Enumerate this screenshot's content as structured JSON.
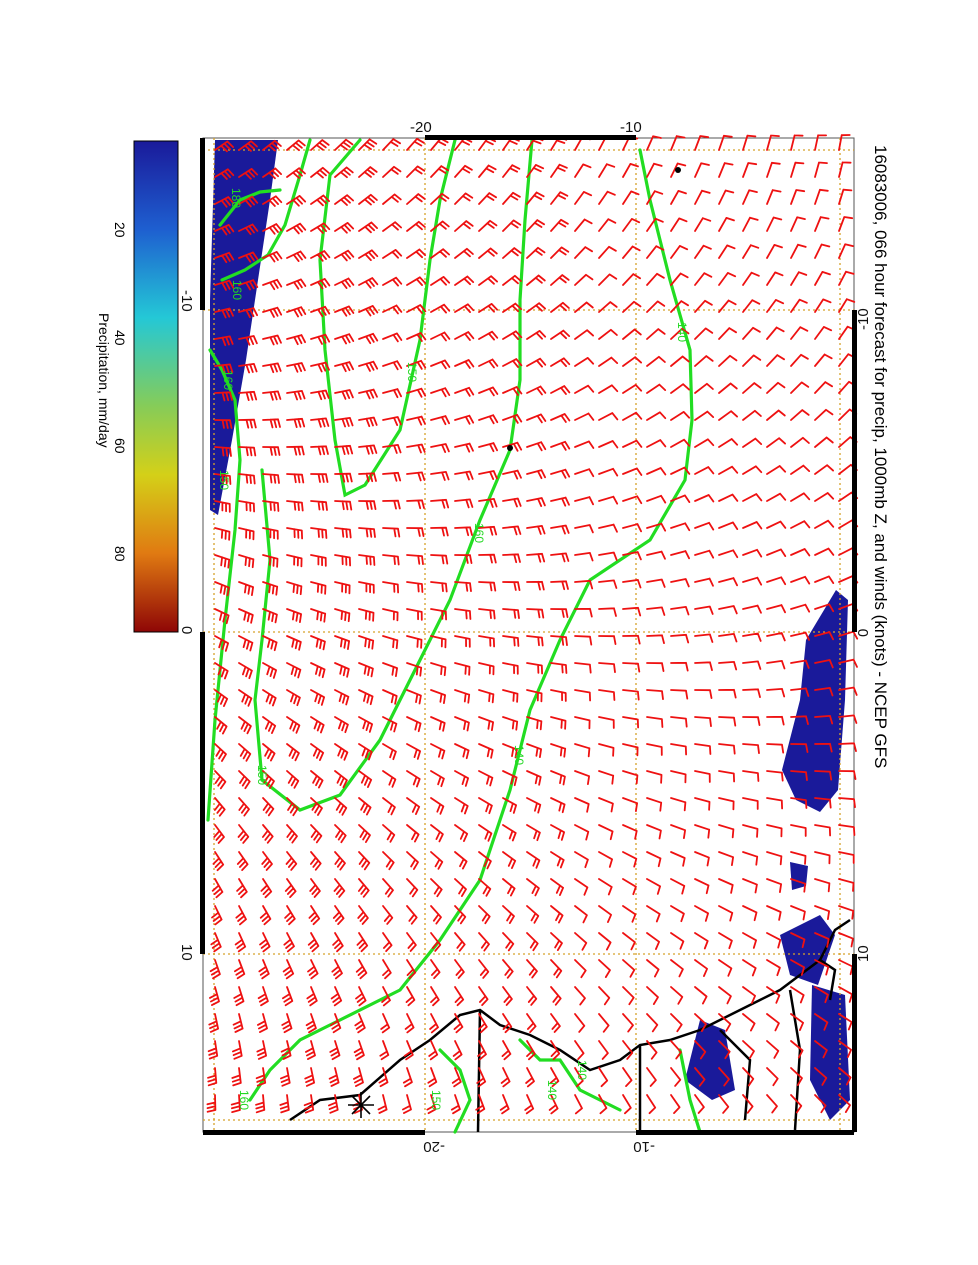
{
  "title": "16083006, 066 hour forecast for precip, 1000mb Z, and winds (knots) - NCEP GFS",
  "colorbar": {
    "label": "Precipitation, mm/day",
    "ticks": [
      "20",
      "40",
      "60",
      "80"
    ],
    "colors": [
      "#1a1aa0",
      "#1e6bd8",
      "#22c7d8",
      "#8ccd55",
      "#d6d016",
      "#e07a10",
      "#a00808"
    ]
  },
  "axes": {
    "left_ticks": [
      "-10",
      "0",
      "10"
    ],
    "right_ticks": [
      "-10",
      "0",
      "10"
    ],
    "top_ticks": [
      "-20",
      "-10"
    ],
    "bottom_ticks": [
      "-20",
      "-10"
    ]
  },
  "contour_labels": [
    "180",
    "160",
    "160",
    "150",
    "160",
    "140",
    "140",
    "150",
    "160",
    "140",
    "140",
    "150",
    "150"
  ],
  "colors": {
    "wind_barbs": "#ee1111",
    "contours": "#22dd22",
    "precip": "#1a1a9a",
    "coastline": "#000000",
    "grid": "#d6a22a"
  }
}
